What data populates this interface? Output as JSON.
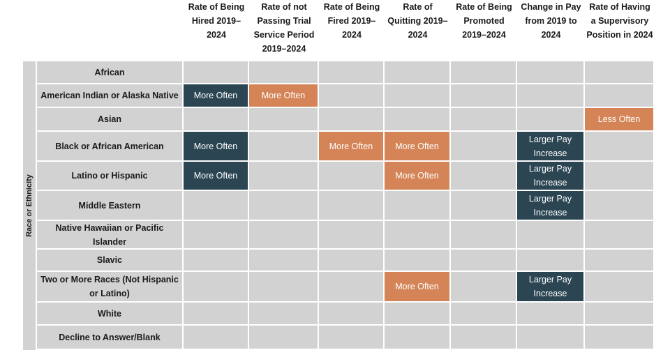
{
  "chart_data": {
    "type": "table",
    "y_axis_label": "Race or Ethnicity",
    "columns": [
      "Rate of Being\nHired 2019–\n2024",
      "Rate of not\nPassing Trial\nService Period\n2019–2024",
      "Rate of Being\nFired 2019–\n2024",
      "Rate of\nQuitting 2019–\n2024",
      "Rate of Being\nPromoted\n2019–2024",
      "Change in Pay\nfrom 2019 to\n2024",
      "Rate of Having\na Supervisory\nPosition in 2024"
    ],
    "rows": [
      "African",
      "American Indian or Alaska Native",
      "Asian",
      "Black or African American",
      "Latino or Hispanic",
      "Middle Eastern",
      "Native Hawaiian or Pacific\nIslander",
      "Slavic",
      "Two or More Races (Not Hispanic\nor Latino)",
      "White",
      "Decline to Answer/Blank"
    ],
    "cells": [
      [
        "",
        "",
        "",
        "",
        "",
        "",
        ""
      ],
      [
        "More Often",
        "More Often",
        "",
        "",
        "",
        "",
        ""
      ],
      [
        "",
        "",
        "",
        "",
        "",
        "",
        "Less Often"
      ],
      [
        "More Often",
        "",
        "More Often",
        "More Often",
        "",
        "Larger Pay\nIncrease",
        ""
      ],
      [
        "More Often",
        "",
        "",
        "More Often",
        "",
        "Larger Pay\nIncrease",
        ""
      ],
      [
        "",
        "",
        "",
        "",
        "",
        "Larger Pay\nIncrease",
        ""
      ],
      [
        "",
        "",
        "",
        "",
        "",
        "",
        ""
      ],
      [
        "",
        "",
        "",
        "",
        "",
        "",
        ""
      ],
      [
        "",
        "",
        "",
        "More Often",
        "",
        "Larger Pay\nIncrease",
        ""
      ],
      [
        "",
        "",
        "",
        "",
        "",
        "",
        ""
      ],
      [
        "",
        "",
        "",
        "",
        "",
        "",
        ""
      ]
    ],
    "colors": {
      "cell": "#d2d2d2",
      "grid": "#ffffff",
      "header_text": "#1a1a1a",
      "teal_mark": "#2b4552",
      "orange_mark": "#d48456"
    },
    "cell_colors": [
      [
        "",
        "",
        "",
        "",
        "",
        "",
        ""
      ],
      [
        "teal",
        "orange",
        "",
        "",
        "",
        "",
        ""
      ],
      [
        "",
        "",
        "",
        "",
        "",
        "",
        "orange"
      ],
      [
        "teal",
        "",
        "orange",
        "orange",
        "",
        "teal",
        ""
      ],
      [
        "teal",
        "",
        "",
        "orange",
        "",
        "teal",
        ""
      ],
      [
        "",
        "",
        "",
        "",
        "",
        "teal",
        ""
      ],
      [
        "",
        "",
        "",
        "",
        "",
        "",
        ""
      ],
      [
        "",
        "",
        "",
        "",
        "",
        "",
        ""
      ],
      [
        "",
        "",
        "",
        "orange",
        "",
        "teal",
        ""
      ],
      [
        "",
        "",
        "",
        "",
        "",
        "",
        ""
      ],
      [
        "",
        "",
        "",
        "",
        "",
        "",
        ""
      ]
    ]
  }
}
